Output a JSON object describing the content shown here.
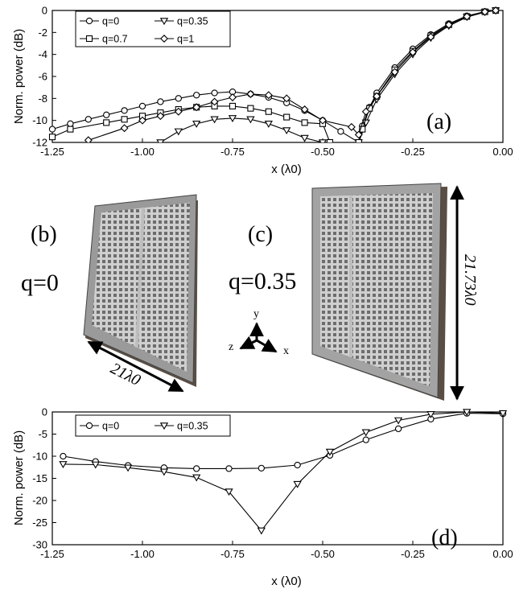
{
  "chart_data": [
    {
      "type": "line",
      "panel_label": "(a)",
      "xlabel": "x (λ0)",
      "ylabel": "Norm. power (dB)",
      "xlim": [
        -1.25,
        0.0
      ],
      "ylim": [
        -12,
        0
      ],
      "xticks": [
        "-1.25",
        "-1.00",
        "-0.75",
        "-0.50",
        "-0.25",
        "0.00"
      ],
      "yticks": [
        "0",
        "-2",
        "-4",
        "-6",
        "-8",
        "-10",
        "-12"
      ],
      "legend_position": "top-left",
      "series": [
        {
          "name": "q=0",
          "marker": "circle",
          "x": [
            -1.25,
            -1.2,
            -1.15,
            -1.1,
            -1.05,
            -1.0,
            -0.95,
            -0.9,
            -0.85,
            -0.8,
            -0.75,
            -0.7,
            -0.65,
            -0.6,
            -0.55,
            -0.5,
            -0.45,
            -0.4,
            -0.39,
            -0.37,
            -0.35,
            -0.3,
            -0.25,
            -0.2,
            -0.15,
            -0.1,
            -0.05,
            -0.02
          ],
          "y": [
            -10.8,
            -10.3,
            -9.9,
            -9.5,
            -9.1,
            -8.7,
            -8.3,
            -8.0,
            -7.7,
            -7.5,
            -7.4,
            -7.6,
            -7.9,
            -8.4,
            -9.1,
            -10.0,
            -11.0,
            -12.0,
            -10.5,
            -8.8,
            -7.5,
            -5.2,
            -3.5,
            -2.2,
            -1.2,
            -0.5,
            -0.1,
            0.0
          ]
        },
        {
          "name": "q=0.35",
          "marker": "triangle-down",
          "x": [
            -0.95,
            -0.9,
            -0.85,
            -0.8,
            -0.75,
            -0.7,
            -0.65,
            -0.6,
            -0.55,
            -0.5,
            -0.4,
            -0.38,
            -0.35,
            -0.3,
            -0.25,
            -0.2,
            -0.15,
            -0.1,
            -0.05,
            -0.02
          ],
          "y": [
            -12.0,
            -11.0,
            -10.3,
            -9.9,
            -9.8,
            -9.9,
            -10.3,
            -10.9,
            -11.6,
            -12.0,
            -12.0,
            -10.2,
            -8.1,
            -5.8,
            -4.0,
            -2.5,
            -1.4,
            -0.6,
            -0.15,
            0.0
          ]
        },
        {
          "name": "q=0.7",
          "marker": "square",
          "x": [
            -1.25,
            -1.2,
            -1.1,
            -1.05,
            -1.0,
            -0.95,
            -0.9,
            -0.85,
            -0.8,
            -0.75,
            -0.7,
            -0.65,
            -0.6,
            -0.55,
            -0.5,
            -0.48,
            -0.4,
            -0.39,
            -0.37,
            -0.35,
            -0.3,
            -0.25,
            -0.2,
            -0.15,
            -0.1,
            -0.05,
            -0.02
          ],
          "y": [
            -11.5,
            -10.8,
            -10.2,
            -9.9,
            -9.6,
            -9.3,
            -9.0,
            -8.8,
            -8.7,
            -8.7,
            -8.9,
            -9.2,
            -9.7,
            -10.2,
            -10.3,
            -12.0,
            -12.0,
            -10.8,
            -8.9,
            -7.8,
            -5.4,
            -3.7,
            -2.3,
            -1.3,
            -0.55,
            -0.12,
            0.0
          ]
        },
        {
          "name": "q=1",
          "marker": "diamond",
          "x": [
            -1.15,
            -1.05,
            -1.0,
            -0.95,
            -0.9,
            -0.85,
            -0.8,
            -0.75,
            -0.7,
            -0.65,
            -0.6,
            -0.55,
            -0.5,
            -0.42,
            -0.4,
            -0.38,
            -0.35,
            -0.3,
            -0.25,
            -0.2,
            -0.15,
            -0.1,
            -0.05,
            -0.02
          ],
          "y": [
            -11.8,
            -10.7,
            -10.0,
            -9.6,
            -9.2,
            -8.8,
            -8.3,
            -7.9,
            -7.6,
            -7.7,
            -8.0,
            -9.0,
            -10.0,
            -10.6,
            -11.3,
            -9.2,
            -7.8,
            -5.6,
            -3.8,
            -2.4,
            -1.3,
            -0.55,
            -0.12,
            0.0
          ]
        }
      ]
    },
    {
      "type": "line",
      "panel_label": "(d)",
      "xlabel": "x (λ0)",
      "ylabel": "Norm. power (dB)",
      "xlim": [
        -1.25,
        0.0
      ],
      "ylim": [
        -30,
        0
      ],
      "xticks": [
        "-1.25",
        "-1.00",
        "-0.75",
        "-0.50",
        "-0.25",
        "0.00"
      ],
      "yticks": [
        "0",
        "-5",
        "-10",
        "-15",
        "-20",
        "-25",
        "-30"
      ],
      "legend_position": "top-left",
      "series": [
        {
          "name": "q=0",
          "marker": "circle",
          "x": [
            -1.22,
            -1.13,
            -1.04,
            -0.94,
            -0.85,
            -0.76,
            -0.67,
            -0.57,
            -0.48,
            -0.38,
            -0.29,
            -0.2,
            -0.1,
            0.0
          ],
          "y": [
            -10.0,
            -11.2,
            -12.1,
            -12.6,
            -12.8,
            -12.8,
            -12.7,
            -12.0,
            -9.8,
            -6.3,
            -3.8,
            -1.6,
            -0.3,
            -0.4
          ]
        },
        {
          "name": "q=0.35",
          "marker": "triangle-down",
          "x": [
            -1.22,
            -1.13,
            -1.04,
            -0.94,
            -0.85,
            -0.76,
            -0.67,
            -0.57,
            -0.48,
            -0.38,
            -0.29,
            -0.2,
            -0.1,
            0.0
          ],
          "y": [
            -11.8,
            -11.9,
            -12.6,
            -13.5,
            -14.8,
            -18.0,
            -26.8,
            -16.3,
            -9.0,
            -4.6,
            -1.9,
            -0.5,
            0.0,
            -0.3
          ]
        }
      ]
    }
  ],
  "photos": {
    "b": {
      "panel_label": "(b)",
      "q_label": "q=0",
      "dimension_label": "21λ0"
    },
    "c": {
      "panel_label": "(c)",
      "q_label": "q=0.35",
      "dimension_label": "21.73λ0"
    },
    "axes_triad": {
      "y": "y",
      "z": "z",
      "x": "x"
    }
  }
}
